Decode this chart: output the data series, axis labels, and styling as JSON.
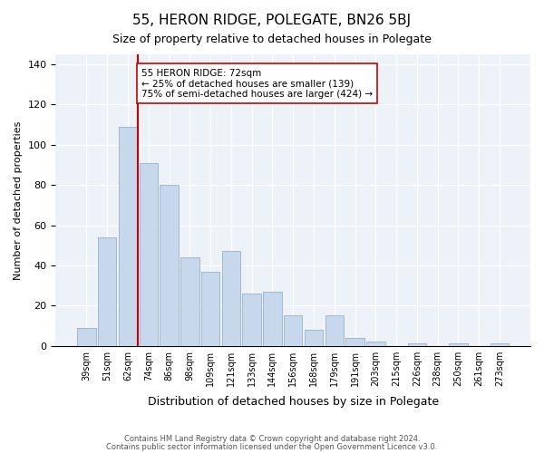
{
  "title": "55, HERON RIDGE, POLEGATE, BN26 5BJ",
  "subtitle": "Size of property relative to detached houses in Polegate",
  "xlabel": "Distribution of detached houses by size in Polegate",
  "ylabel": "Number of detached properties",
  "bar_labels": [
    "39sqm",
    "51sqm",
    "62sqm",
    "74sqm",
    "86sqm",
    "98sqm",
    "109sqm",
    "121sqm",
    "133sqm",
    "144sqm",
    "156sqm",
    "168sqm",
    "179sqm",
    "191sqm",
    "203sqm",
    "215sqm",
    "226sqm",
    "238sqm",
    "250sqm",
    "261sqm",
    "273sqm"
  ],
  "bar_values": [
    9,
    54,
    109,
    91,
    80,
    44,
    37,
    47,
    26,
    27,
    15,
    8,
    15,
    4,
    2,
    0,
    1,
    0,
    1,
    0,
    1
  ],
  "bar_color": "#c8d8ec",
  "bar_edge_color": "#a0b8d0",
  "vline_pos": 2.5,
  "vline_color": "#cc0000",
  "annotation_text": "55 HERON RIDGE: 72sqm\n← 25% of detached houses are smaller (139)\n75% of semi-detached houses are larger (424) →",
  "annotation_box_color": "#ffffff",
  "annotation_box_edge": "#cc0000",
  "ylim": [
    0,
    145
  ],
  "yticks": [
    0,
    20,
    40,
    60,
    80,
    100,
    120,
    140
  ],
  "footer1": "Contains HM Land Registry data © Crown copyright and database right 2024.",
  "footer2": "Contains public sector information licensed under the Open Government Licence v3.0.",
  "bg_color": "#edf2f8"
}
